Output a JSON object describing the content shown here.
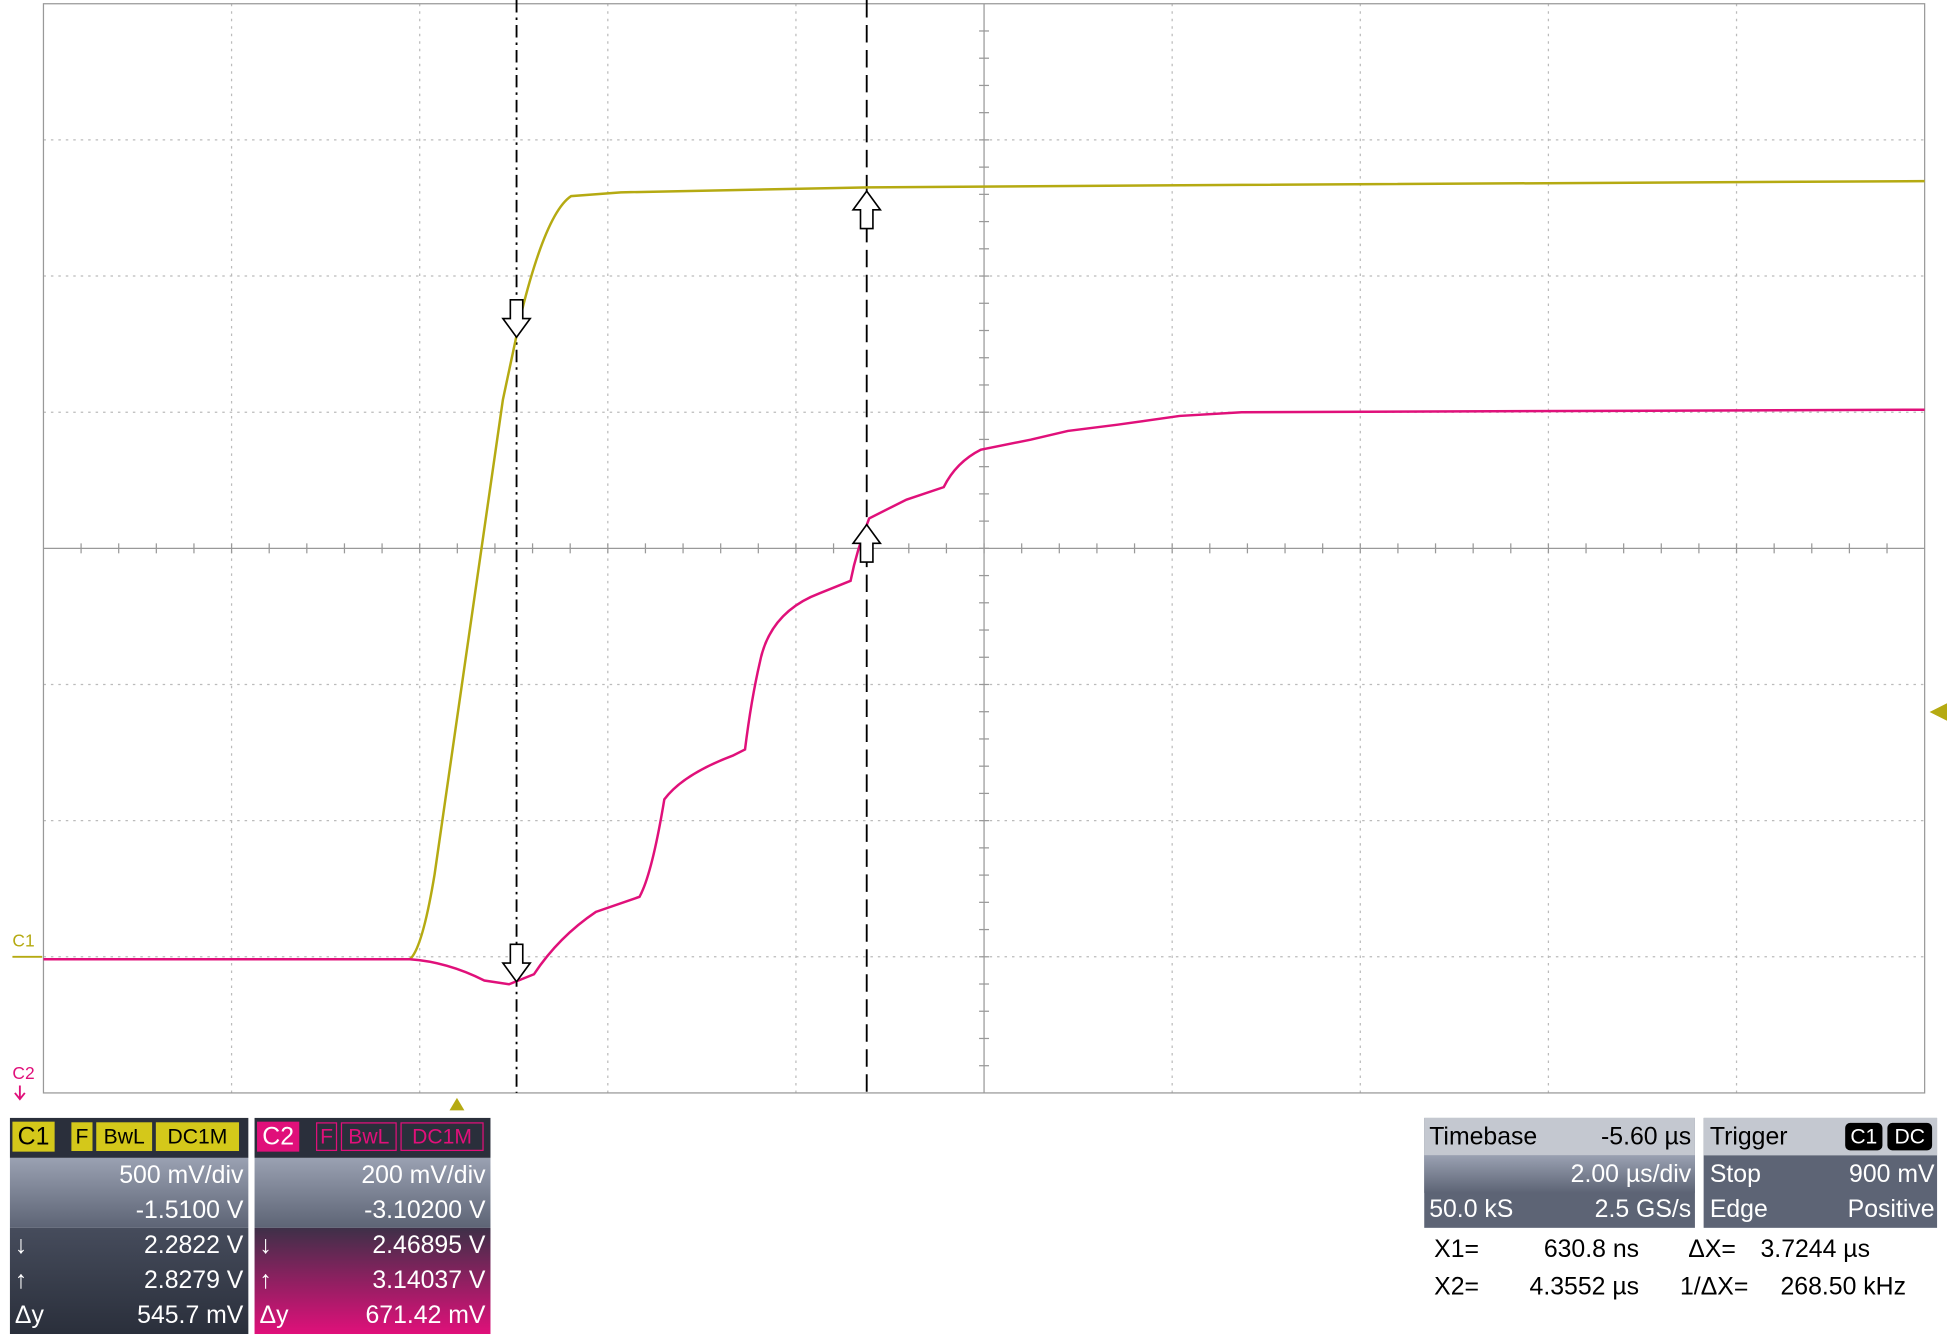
{
  "markers": {
    "c1": "C1",
    "c2": "C2"
  },
  "channels": [
    {
      "label": "C1",
      "flags": [
        "F",
        "BwL",
        "DC1M"
      ],
      "scale": "500 mV/div",
      "offset": "-1.5100 V",
      "down_symbol": "↓",
      "cursor_down": "2.2822 V",
      "up_symbol": "↑",
      "cursor_up": "2.8279 V",
      "delta_y_label": "Δy",
      "delta_y": "545.7 mV"
    },
    {
      "label": "C2",
      "flags": [
        "F",
        "BwL",
        "DC1M"
      ],
      "scale": "200 mV/div",
      "offset": "-3.10200 V",
      "down_symbol": "↓",
      "cursor_down": "2.46895 V",
      "up_symbol": "↑",
      "cursor_up": "3.14037 V",
      "delta_y_label": "Δy",
      "delta_y": "671.42 mV"
    }
  ],
  "timebase": {
    "label": "Timebase",
    "delay": "-5.60 µs",
    "scale": "2.00 µs/div",
    "samples": "50.0 kS",
    "rate": "2.5 GS/s"
  },
  "trigger": {
    "label": "Trigger",
    "source": "C1",
    "coupling": "DC",
    "mode": "Stop",
    "level": "900 mV",
    "type": "Edge",
    "slope": "Positive"
  },
  "cursors": {
    "x1_label": "X1=",
    "x1": "630.8 ns",
    "x2_label": "X2=",
    "x2": "4.3552 µs",
    "dx_label": "ΔX=",
    "dx": "3.7244 µs",
    "inv_dx_label": "1/ΔX=",
    "inv_dx": "268.50 kHz"
  }
}
